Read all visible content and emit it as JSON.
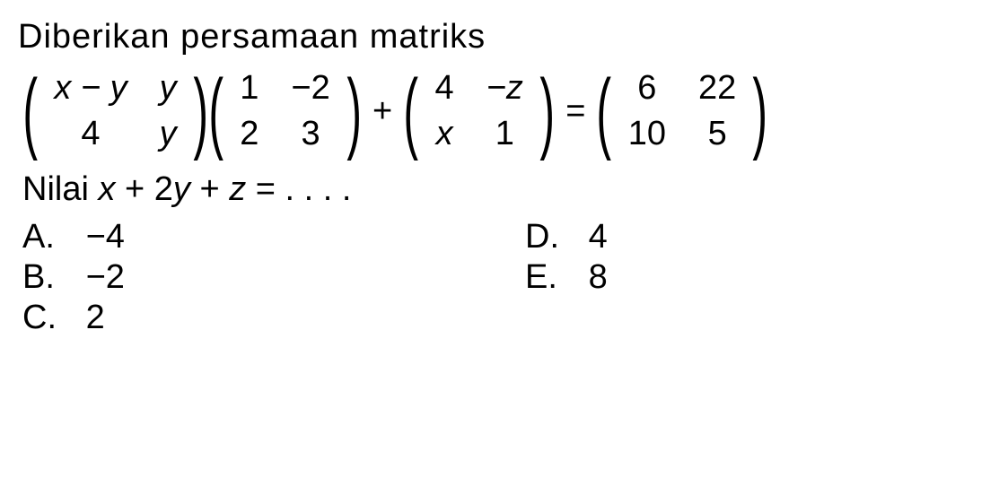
{
  "problem": {
    "intro_text": "Diberikan persamaan matriks",
    "equation": {
      "m1": {
        "r1c1": "x − y",
        "r1c2": "y",
        "r2c1": "4",
        "r2c2": "y"
      },
      "m2": {
        "r1c1": "1",
        "r1c2": "−2",
        "r2c1": "2",
        "r2c2": "3"
      },
      "m3": {
        "r1c1": "4",
        "r1c2": "−z",
        "r2c1": "x",
        "r2c2": "1"
      },
      "m4": {
        "r1c1": "6",
        "r1c2": "22",
        "r2c1": "10",
        "r2c2": "5"
      },
      "op_plus": "+",
      "op_eq": "="
    },
    "question_prefix": "Nilai ",
    "question_expr_x": "x",
    "question_expr_plus1": " + 2",
    "question_expr_y": "y",
    "question_expr_plus2": " + ",
    "question_expr_z": "z",
    "question_expr_eq": " = . . . .",
    "answers": {
      "a_label": "A.",
      "a_value": "−4",
      "b_label": "B.",
      "b_value": "−2",
      "c_label": "C.",
      "c_value": "2",
      "d_label": "D.",
      "d_value": "4",
      "e_label": "E.",
      "e_value": "8"
    }
  },
  "style": {
    "font_size_main": 38,
    "font_size_paren": 100,
    "text_color": "#000000",
    "background_color": "#ffffff"
  }
}
